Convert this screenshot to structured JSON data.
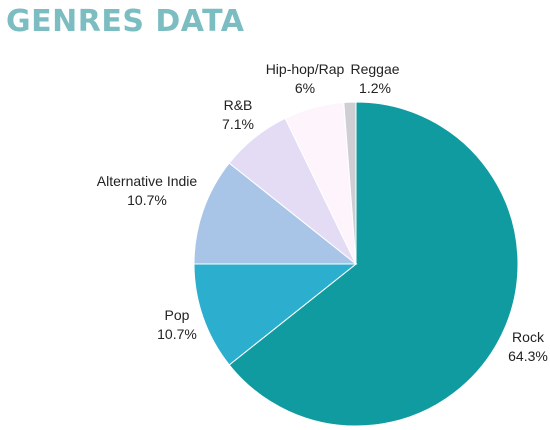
{
  "chart_data": {
    "type": "pie",
    "title": "GENRES DATA",
    "slices": [
      {
        "label": "Rock",
        "value": 64.3,
        "value_label": "64.3%",
        "color": "#0f9ba0"
      },
      {
        "label": "Pop",
        "value": 10.7,
        "value_label": "10.7%",
        "color": "#2cafcf"
      },
      {
        "label": "Alternative Indie",
        "value": 10.7,
        "value_label": "10.7%",
        "color": "#a8c4e7"
      },
      {
        "label": "R&B",
        "value": 7.1,
        "value_label": "7.1%",
        "color": "#e4dcf4"
      },
      {
        "label": "Hip-hop/Rap",
        "value": 6,
        "value_label": "6%",
        "color": "#fdf5fb"
      },
      {
        "label": "Reggae",
        "value": 1.2,
        "value_label": "1.2%",
        "color": "#cfcfd3"
      }
    ],
    "start_angle": "12 o'clock",
    "direction": "clockwise",
    "legend": "none",
    "label_placement": "outside"
  }
}
